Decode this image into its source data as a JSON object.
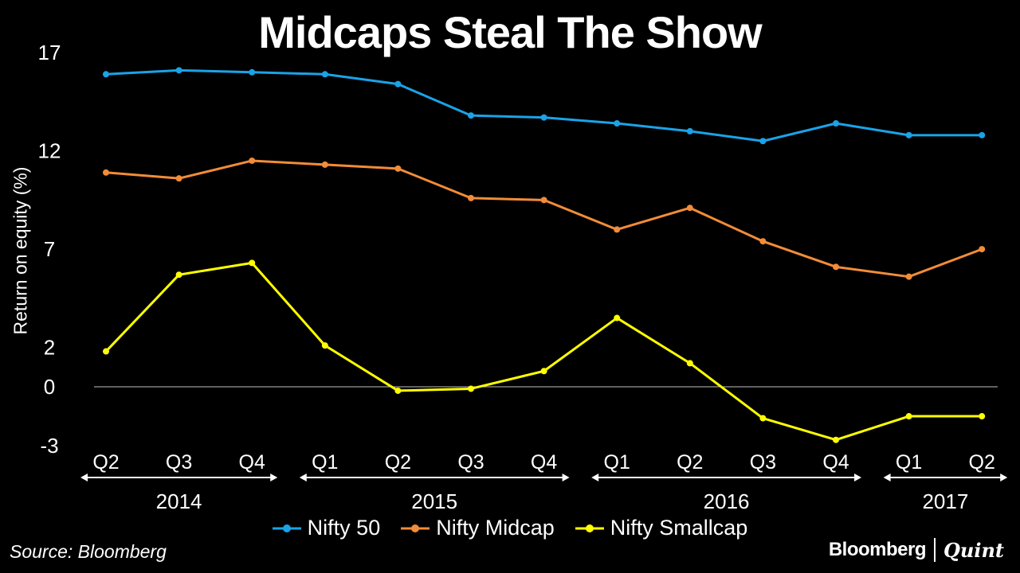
{
  "chart_data": {
    "type": "line",
    "title": "Midcaps Steal The Show",
    "xlabel": "",
    "ylabel": "Return on equity (%)",
    "categories": [
      "Q2",
      "Q3",
      "Q4",
      "Q1",
      "Q2",
      "Q3",
      "Q4",
      "Q1",
      "Q2",
      "Q3",
      "Q4",
      "Q1",
      "Q2"
    ],
    "years": [
      {
        "label": "2014",
        "from": 0,
        "to": 2
      },
      {
        "label": "2015",
        "from": 3,
        "to": 6
      },
      {
        "label": "2016",
        "from": 7,
        "to": 10
      },
      {
        "label": "2017",
        "from": 11,
        "to": 12
      }
    ],
    "yticks": [
      17,
      12,
      7,
      2,
      0,
      -3
    ],
    "ylim": [
      -3,
      17
    ],
    "series": [
      {
        "name": "Nifty 50",
        "color": "#1aa3e8",
        "values": [
          15.9,
          16.1,
          16.0,
          15.9,
          15.4,
          13.8,
          13.7,
          13.4,
          13.0,
          12.5,
          13.4,
          12.8,
          12.8
        ]
      },
      {
        "name": "Nifty Midcap",
        "color": "#f28c38",
        "values": [
          10.9,
          10.6,
          11.5,
          11.3,
          11.1,
          9.6,
          9.5,
          8.0,
          9.1,
          7.4,
          6.1,
          5.6,
          7.0
        ]
      },
      {
        "name": "Nifty Smallcap",
        "color": "#ffff00",
        "values": [
          1.8,
          5.7,
          6.3,
          2.1,
          -0.2,
          -0.1,
          0.8,
          3.5,
          1.2,
          -1.6,
          -2.7,
          -1.5,
          -1.5
        ]
      }
    ],
    "legend_position": "bottom-center",
    "grid": false
  },
  "source": "Source: Bloomberg",
  "brand": {
    "left": "Bloomberg",
    "right": "Quint"
  }
}
